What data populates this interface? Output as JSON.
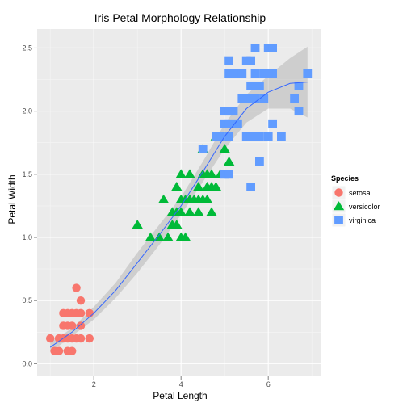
{
  "chart_data": {
    "type": "scatter",
    "title": "Iris Petal Morphology Relationship",
    "xlabel": "Petal Length",
    "ylabel": "Petal Width",
    "xlim": [
      0.7,
      7.2
    ],
    "ylim": [
      -0.1,
      2.65
    ],
    "xticks": [
      2,
      4,
      6
    ],
    "yticks": [
      0.0,
      0.5,
      1.0,
      1.5,
      2.0,
      2.5
    ],
    "ytick_labels": [
      "0.0",
      "0.5",
      "1.0",
      "1.5",
      "2.0",
      "2.5"
    ],
    "grid": true,
    "legend": {
      "title": "Species",
      "position": "right"
    },
    "colors": {
      "setosa": "#F8766D",
      "versicolor": "#00BA38",
      "virginica": "#619CFF",
      "smooth": "#3366FF",
      "ribbon": "#999999",
      "panel": "#EBEBEB"
    },
    "series": [
      {
        "name": "setosa",
        "shape": "circle",
        "points": [
          [
            1.0,
            0.2
          ],
          [
            1.1,
            0.1
          ],
          [
            1.2,
            0.2
          ],
          [
            1.3,
            0.2
          ],
          [
            1.3,
            0.3
          ],
          [
            1.3,
            0.4
          ],
          [
            1.4,
            0.1
          ],
          [
            1.4,
            0.2
          ],
          [
            1.4,
            0.3
          ],
          [
            1.5,
            0.1
          ],
          [
            1.5,
            0.2
          ],
          [
            1.5,
            0.3
          ],
          [
            1.5,
            0.4
          ],
          [
            1.6,
            0.2
          ],
          [
            1.6,
            0.4
          ],
          [
            1.6,
            0.6
          ],
          [
            1.7,
            0.2
          ],
          [
            1.7,
            0.3
          ],
          [
            1.7,
            0.4
          ],
          [
            1.7,
            0.5
          ],
          [
            1.9,
            0.2
          ],
          [
            1.9,
            0.4
          ],
          [
            1.2,
            0.1
          ],
          [
            1.4,
            0.4
          ]
        ]
      },
      {
        "name": "versicolor",
        "shape": "triangle",
        "points": [
          [
            3.0,
            1.1
          ],
          [
            3.3,
            1.0
          ],
          [
            3.5,
            1.0
          ],
          [
            3.6,
            1.3
          ],
          [
            3.7,
            1.0
          ],
          [
            3.8,
            1.1
          ],
          [
            3.9,
            1.1
          ],
          [
            3.9,
            1.2
          ],
          [
            3.9,
            1.4
          ],
          [
            4.0,
            1.0
          ],
          [
            4.0,
            1.2
          ],
          [
            4.0,
            1.3
          ],
          [
            4.1,
            1.0
          ],
          [
            4.1,
            1.3
          ],
          [
            4.2,
            1.2
          ],
          [
            4.2,
            1.3
          ],
          [
            4.2,
            1.5
          ],
          [
            4.3,
            1.3
          ],
          [
            4.4,
            1.2
          ],
          [
            4.4,
            1.3
          ],
          [
            4.4,
            1.4
          ],
          [
            4.5,
            1.3
          ],
          [
            4.5,
            1.5
          ],
          [
            4.5,
            1.7
          ],
          [
            4.6,
            1.3
          ],
          [
            4.6,
            1.4
          ],
          [
            4.6,
            1.5
          ],
          [
            4.7,
            1.2
          ],
          [
            4.7,
            1.4
          ],
          [
            4.7,
            1.5
          ],
          [
            4.8,
            1.4
          ],
          [
            4.8,
            1.8
          ],
          [
            4.9,
            1.5
          ],
          [
            5.0,
            1.7
          ],
          [
            5.1,
            1.6
          ],
          [
            3.8,
            1.2
          ],
          [
            4.0,
            1.5
          ]
        ]
      },
      {
        "name": "virginica",
        "shape": "square",
        "points": [
          [
            4.5,
            1.7
          ],
          [
            4.8,
            1.8
          ],
          [
            4.9,
            1.8
          ],
          [
            5.0,
            1.5
          ],
          [
            5.0,
            1.9
          ],
          [
            5.0,
            2.0
          ],
          [
            5.1,
            1.5
          ],
          [
            5.1,
            1.8
          ],
          [
            5.1,
            1.9
          ],
          [
            5.1,
            2.0
          ],
          [
            5.1,
            2.3
          ],
          [
            5.1,
            2.4
          ],
          [
            5.2,
            2.0
          ],
          [
            5.2,
            2.3
          ],
          [
            5.3,
            1.9
          ],
          [
            5.3,
            2.3
          ],
          [
            5.4,
            2.1
          ],
          [
            5.4,
            2.3
          ],
          [
            5.5,
            1.8
          ],
          [
            5.5,
            2.1
          ],
          [
            5.6,
            1.4
          ],
          [
            5.6,
            1.8
          ],
          [
            5.6,
            2.1
          ],
          [
            5.6,
            2.2
          ],
          [
            5.6,
            2.4
          ],
          [
            5.7,
            2.1
          ],
          [
            5.7,
            2.3
          ],
          [
            5.7,
            2.5
          ],
          [
            5.8,
            1.6
          ],
          [
            5.8,
            1.8
          ],
          [
            5.8,
            2.2
          ],
          [
            5.9,
            2.1
          ],
          [
            5.9,
            2.3
          ],
          [
            6.0,
            1.8
          ],
          [
            6.0,
            2.5
          ],
          [
            6.1,
            1.9
          ],
          [
            6.1,
            2.3
          ],
          [
            6.1,
            2.5
          ],
          [
            6.3,
            1.8
          ],
          [
            6.6,
            2.1
          ],
          [
            6.7,
            2.0
          ],
          [
            6.7,
            2.2
          ],
          [
            6.9,
            2.3
          ],
          [
            5.5,
            2.4
          ],
          [
            6.0,
            2.3
          ]
        ]
      }
    ],
    "smooth": {
      "x": [
        1.0,
        1.5,
        2.0,
        2.5,
        3.0,
        3.5,
        4.0,
        4.5,
        5.0,
        5.5,
        6.0,
        6.5,
        6.9
      ],
      "y": [
        0.13,
        0.25,
        0.4,
        0.58,
        0.8,
        1.02,
        1.25,
        1.52,
        1.8,
        2.02,
        2.15,
        2.22,
        2.23
      ],
      "lo": [
        0.09,
        0.22,
        0.35,
        0.52,
        0.72,
        0.94,
        1.18,
        1.44,
        1.7,
        1.91,
        2.02,
        2.02,
        1.95
      ],
      "hi": [
        0.17,
        0.28,
        0.45,
        0.64,
        0.88,
        1.1,
        1.32,
        1.6,
        1.9,
        2.13,
        2.28,
        2.42,
        2.51
      ]
    }
  }
}
